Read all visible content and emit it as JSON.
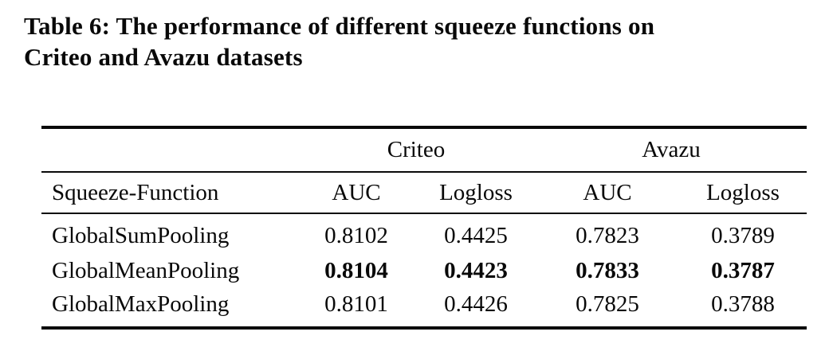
{
  "caption": {
    "line1": "Table 6: The performance of different squeeze functions on",
    "line2": "Criteo and Avazu datasets"
  },
  "table": {
    "group_headers": [
      {
        "label": "Criteo"
      },
      {
        "label": "Avazu"
      }
    ],
    "column_headers": {
      "name": "Squeeze-Function",
      "criteo_auc": "AUC",
      "criteo_logloss": "Logloss",
      "avazu_auc": "AUC",
      "avazu_logloss": "Logloss"
    },
    "rows": [
      {
        "name": "GlobalSumPooling",
        "values": [
          "0.8102",
          "0.4425",
          "0.7823",
          "0.3789"
        ],
        "bold": false
      },
      {
        "name": "GlobalMeanPooling",
        "values": [
          "0.8104",
          "0.4423",
          "0.7833",
          "0.3787"
        ],
        "bold": true
      },
      {
        "name": "GlobalMaxPooling",
        "values": [
          "0.8101",
          "0.4426",
          "0.7825",
          "0.3788"
        ],
        "bold": false
      }
    ]
  },
  "colors": {
    "text": "#090909",
    "rule": "#0a0a0a",
    "background": "#ffffff"
  }
}
